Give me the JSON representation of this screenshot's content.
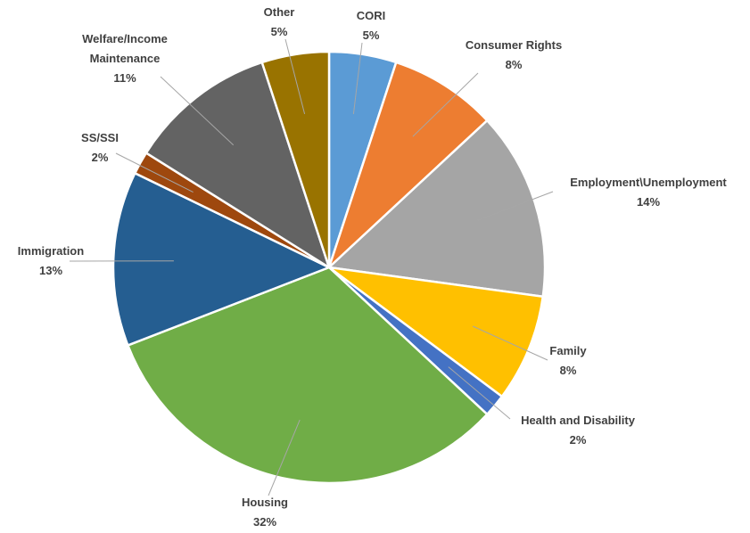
{
  "chart_data": {
    "type": "pie",
    "title": "",
    "slices": [
      {
        "name": "CORI",
        "value": 5,
        "label": "5%",
        "color": "#5b9bd5"
      },
      {
        "name": "Consumer Rights",
        "value": 8,
        "label": "8%",
        "color": "#ed7d31"
      },
      {
        "name": "Employment\\Unemployment",
        "value": 14,
        "label": "14%",
        "color": "#a5a5a5"
      },
      {
        "name": "Family",
        "value": 8,
        "label": "8%",
        "color": "#ffc000"
      },
      {
        "name": "Health and Disability",
        "value": 1.7,
        "label": "2%",
        "color": "#4472c4"
      },
      {
        "name": "Housing",
        "value": 32,
        "label": "32%",
        "color": "#70ad47"
      },
      {
        "name": "Immigration",
        "value": 13,
        "label": "13%",
        "color": "#255e91"
      },
      {
        "name": "SS/SSI",
        "value": 1.7,
        "label": "2%",
        "color": "#9e480e"
      },
      {
        "name": "Welfare/Income Maintenance",
        "value": 11,
        "label": "11%",
        "color": "#636363"
      },
      {
        "name": "Other",
        "value": 5,
        "label": "5%",
        "color": "#997300"
      }
    ],
    "start_angle": "12 o'clock",
    "direction": "clockwise",
    "legend": "none",
    "data_labels": "outside with leader lines"
  }
}
